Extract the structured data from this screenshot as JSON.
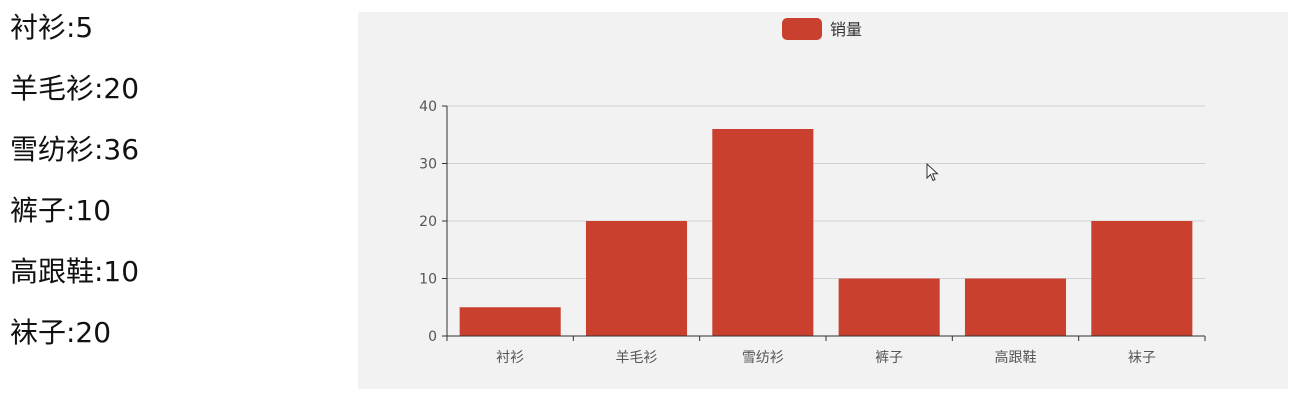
{
  "items": [
    {
      "label": "衬衫:5"
    },
    {
      "label": "羊毛衫:20"
    },
    {
      "label": "雪纺衫:36"
    },
    {
      "label": "裤子:10"
    },
    {
      "label": "高跟鞋:10"
    },
    {
      "label": "袜子:20"
    }
  ],
  "chart_data": {
    "type": "bar",
    "categories": [
      "衬衫",
      "羊毛衫",
      "雪纺衫",
      "裤子",
      "高跟鞋",
      "袜子"
    ],
    "series": [
      {
        "name": "销量",
        "values": [
          5,
          20,
          36,
          10,
          10,
          20
        ]
      }
    ],
    "ylim": [
      0,
      40
    ],
    "yticks": [
      0,
      10,
      20,
      30,
      40
    ],
    "grid": true,
    "legend_position": "top-center",
    "bar_color": "#c9402f"
  }
}
